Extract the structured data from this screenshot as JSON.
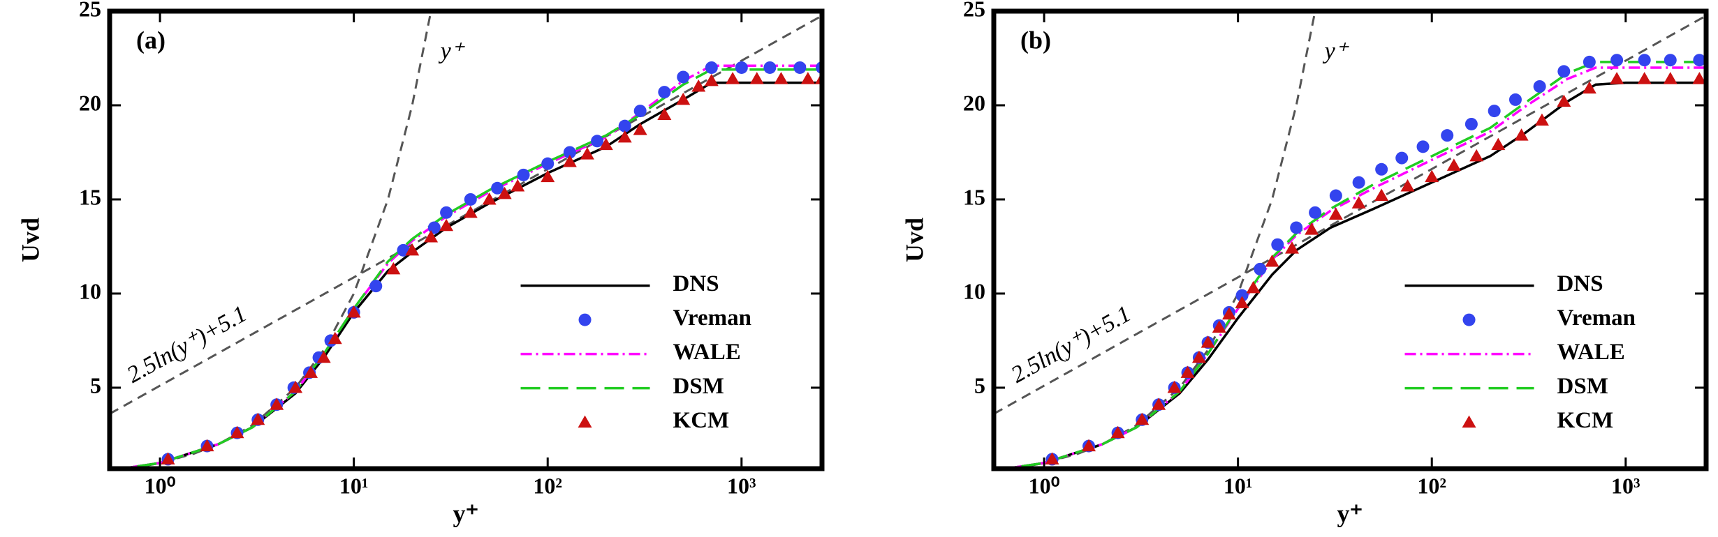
{
  "chart_data": [
    {
      "type": "line",
      "title": "(a)",
      "x_label": "y⁺",
      "y_label": "Uvd",
      "xscale": "log",
      "grid": false,
      "legend": "lower right",
      "xlim": [
        0.55,
        2600
      ],
      "ylim": [
        0.7,
        25
      ],
      "xticks": [
        {
          "value": 1,
          "label": "10⁰"
        },
        {
          "value": 10,
          "label": "10¹"
        },
        {
          "value": 100,
          "label": "10²"
        },
        {
          "value": 1000,
          "label": "10³"
        }
      ],
      "yticks": [
        5,
        10,
        15,
        20,
        25
      ],
      "reference_lines": [
        {
          "label": "y⁺",
          "color": "#555555",
          "x": [
            0.7,
            1,
            1.5,
            2,
            3,
            5,
            7,
            10,
            15,
            20,
            25
          ],
          "values": [
            0.7,
            1,
            1.5,
            2,
            3,
            5,
            7,
            10,
            15,
            20,
            25
          ]
        },
        {
          "label": "2.5ln(y⁺)+5.1",
          "color": "#555555",
          "x": [
            0.55,
            2600
          ],
          "values": [
            3.61,
            24.76
          ]
        }
      ],
      "series": [
        {
          "name": "DNS",
          "color": "#000000",
          "style": "line",
          "dash": "solid",
          "x": [
            0.55,
            1,
            2,
            3,
            5,
            7,
            10,
            15,
            20,
            30,
            50,
            100,
            200,
            300,
            500,
            700,
            1000,
            2600
          ],
          "values": [
            0.6,
            1.0,
            2.0,
            2.9,
            4.7,
            6.6,
            9.0,
            11.2,
            12.2,
            13.5,
            14.8,
            16.4,
            17.8,
            19.0,
            20.3,
            21.2,
            21.2,
            21.2
          ]
        },
        {
          "name": "Vreman",
          "color": "#3344ee",
          "style": "marker",
          "marker": "circle",
          "x": [
            1.1,
            1.75,
            2.5,
            3.2,
            4,
            4.9,
            5.9,
            6.6,
            7.6,
            10,
            13,
            18,
            26,
            30,
            40,
            55,
            75,
            100,
            130,
            180,
            250,
            300,
            400,
            500,
            700,
            1000,
            1400,
            2000,
            2600
          ],
          "values": [
            1.2,
            1.9,
            2.6,
            3.3,
            4.1,
            5.0,
            5.8,
            6.6,
            7.5,
            9.0,
            10.4,
            12.3,
            13.5,
            14.3,
            15.0,
            15.6,
            16.3,
            16.9,
            17.5,
            18.1,
            18.9,
            19.7,
            20.7,
            21.5,
            22.0,
            22.0,
            22.0,
            22.0,
            22.0
          ]
        },
        {
          "name": "WALE",
          "color": "#ff00ff",
          "style": "line",
          "dash": "dashdot",
          "x": [
            0.55,
            1,
            2,
            3,
            5,
            7,
            10,
            15,
            20,
            30,
            50,
            100,
            200,
            300,
            500,
            700,
            1000,
            2600
          ],
          "values": [
            0.6,
            1.0,
            2.0,
            2.9,
            4.8,
            6.8,
            9.2,
            11.6,
            12.8,
            14.1,
            15.4,
            16.9,
            18.3,
            19.6,
            21.3,
            22.1,
            22.1,
            22.1
          ]
        },
        {
          "name": "DSM",
          "color": "#22cc22",
          "style": "line",
          "dash": "dashed",
          "x": [
            0.55,
            1,
            2,
            3,
            5,
            7,
            10,
            15,
            20,
            30,
            50,
            100,
            200,
            300,
            500,
            700,
            1000,
            2600
          ],
          "values": [
            0.6,
            1.0,
            2.0,
            2.9,
            4.8,
            6.8,
            9.2,
            11.7,
            12.9,
            14.2,
            15.5,
            17.0,
            18.4,
            19.5,
            21.1,
            21.9,
            21.9,
            21.9
          ]
        },
        {
          "name": "KCM",
          "color": "#cc1111",
          "style": "marker",
          "marker": "triangle",
          "x": [
            1.1,
            1.75,
            2.5,
            3.2,
            4,
            5,
            6,
            7,
            8,
            10,
            16,
            20,
            25,
            30,
            40,
            50,
            60,
            70,
            100,
            130,
            160,
            200,
            250,
            300,
            400,
            500,
            600,
            700,
            900,
            1200,
            1600,
            2200,
            2600
          ],
          "values": [
            1.2,
            1.9,
            2.6,
            3.3,
            4.1,
            5.0,
            5.8,
            6.6,
            7.6,
            9.0,
            11.3,
            12.3,
            13.0,
            13.6,
            14.3,
            15.0,
            15.3,
            15.7,
            16.2,
            17.0,
            17.4,
            17.9,
            18.3,
            18.7,
            19.5,
            20.3,
            21.0,
            21.3,
            21.4,
            21.4,
            21.4,
            21.4,
            21.4
          ]
        }
      ]
    },
    {
      "type": "line",
      "title": "(b)",
      "x_label": "y⁺",
      "y_label": "Uvd",
      "xscale": "log",
      "grid": false,
      "legend": "lower right",
      "xlim": [
        0.55,
        2600
      ],
      "ylim": [
        0.7,
        25
      ],
      "xticks": [
        {
          "value": 1,
          "label": "10⁰"
        },
        {
          "value": 10,
          "label": "10¹"
        },
        {
          "value": 100,
          "label": "10²"
        },
        {
          "value": 1000,
          "label": "10³"
        }
      ],
      "yticks": [
        5,
        10,
        15,
        20,
        25
      ],
      "reference_lines": [
        {
          "label": "y⁺",
          "color": "#555555",
          "x": [
            0.7,
            1,
            1.5,
            2,
            3,
            5,
            7,
            10,
            15,
            20,
            25
          ],
          "values": [
            0.7,
            1,
            1.5,
            2,
            3,
            5,
            7,
            10,
            15,
            20,
            25
          ]
        },
        {
          "label": "2.5ln(y⁺)+5.1",
          "color": "#555555",
          "x": [
            0.55,
            2600
          ],
          "values": [
            3.61,
            24.76
          ]
        }
      ],
      "series": [
        {
          "name": "DNS",
          "color": "#000000",
          "style": "line",
          "dash": "solid",
          "x": [
            0.55,
            1,
            2,
            3,
            5,
            7,
            10,
            15,
            20,
            30,
            50,
            100,
            200,
            300,
            500,
            700,
            1000,
            2600
          ],
          "values": [
            0.6,
            1.0,
            2.0,
            2.9,
            4.7,
            6.5,
            8.7,
            11.0,
            12.3,
            13.5,
            14.5,
            15.9,
            17.3,
            18.5,
            20.2,
            21.1,
            21.2,
            21.2
          ]
        },
        {
          "name": "Vreman",
          "color": "#3344ee",
          "style": "marker",
          "marker": "circle",
          "x": [
            1.1,
            1.7,
            2.4,
            3.2,
            3.9,
            4.7,
            5.5,
            6.3,
            7,
            8,
            9,
            10.5,
            13,
            16,
            20,
            25,
            32,
            42,
            55,
            70,
            90,
            120,
            160,
            210,
            270,
            360,
            480,
            650,
            900,
            1250,
            1700,
            2400
          ],
          "values": [
            1.2,
            1.9,
            2.6,
            3.3,
            4.1,
            5.0,
            5.8,
            6.6,
            7.4,
            8.3,
            9.0,
            9.9,
            11.3,
            12.6,
            13.5,
            14.3,
            15.2,
            15.9,
            16.6,
            17.2,
            17.8,
            18.4,
            19.0,
            19.7,
            20.3,
            21.0,
            21.8,
            22.3,
            22.4,
            22.4,
            22.4,
            22.4
          ]
        },
        {
          "name": "WALE",
          "color": "#ff00ff",
          "style": "line",
          "dash": "dashdot",
          "x": [
            0.55,
            1,
            2,
            3,
            5,
            7,
            10,
            15,
            20,
            30,
            50,
            100,
            200,
            300,
            500,
            700,
            1000,
            2600
          ],
          "values": [
            0.6,
            1.0,
            2.0,
            2.9,
            4.8,
            6.8,
            9.2,
            11.8,
            13.1,
            14.4,
            15.6,
            17.1,
            18.6,
            19.9,
            21.4,
            22.0,
            22.0,
            22.0
          ]
        },
        {
          "name": "DSM",
          "color": "#22cc22",
          "style": "line",
          "dash": "dashed",
          "x": [
            0.55,
            1,
            2,
            3,
            5,
            7,
            10,
            15,
            20,
            30,
            50,
            100,
            200,
            300,
            500,
            700,
            1000,
            2600
          ],
          "values": [
            0.6,
            1.0,
            2.0,
            2.9,
            4.8,
            6.8,
            9.3,
            11.9,
            13.2,
            14.5,
            15.8,
            17.3,
            18.8,
            20.1,
            21.7,
            22.3,
            22.3,
            22.3
          ]
        },
        {
          "name": "KCM",
          "color": "#cc1111",
          "style": "marker",
          "marker": "triangle",
          "x": [
            1.1,
            1.7,
            2.4,
            3.2,
            3.9,
            4.7,
            5.5,
            6.3,
            7,
            8,
            9,
            10.5,
            12,
            15,
            19,
            24,
            32,
            42,
            55,
            75,
            100,
            130,
            170,
            220,
            290,
            370,
            480,
            650,
            900,
            1250,
            1700,
            2400
          ],
          "values": [
            1.2,
            1.9,
            2.6,
            3.3,
            4.1,
            5.0,
            5.8,
            6.6,
            7.4,
            8.2,
            8.9,
            9.5,
            10.3,
            11.7,
            12.4,
            13.4,
            14.2,
            14.8,
            15.2,
            15.7,
            16.2,
            16.8,
            17.3,
            17.9,
            18.4,
            19.2,
            20.2,
            20.9,
            21.4,
            21.4,
            21.4,
            21.4
          ]
        }
      ]
    }
  ]
}
